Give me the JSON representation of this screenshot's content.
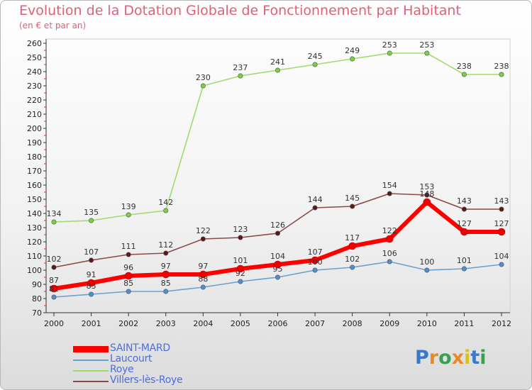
{
  "header": {
    "title": "Evolution de la Dotation Globale de Fonctionnement par Habitant",
    "subtitle": "(en € et par an)"
  },
  "brand": {
    "logo_letters": [
      "P",
      "r",
      "o",
      "x",
      "i",
      "t",
      "i"
    ],
    "logo_colors": [
      "#3c78c8",
      "#e88a2a",
      "#3aa050",
      "#e88a2a",
      "#d8c020",
      "#3c78c8",
      "#3aa050"
    ]
  },
  "chart_data": {
    "type": "line",
    "title": "Evolution de la Dotation Globale de Fonctionnement par Habitant",
    "subtitle": "(en € et par an)",
    "xlabel": "",
    "ylabel": "",
    "ylim": [
      70,
      260
    ],
    "y_ticks": [
      70,
      80,
      90,
      100,
      110,
      120,
      130,
      140,
      150,
      160,
      170,
      180,
      190,
      200,
      210,
      220,
      230,
      240,
      250,
      260
    ],
    "grid": false,
    "legend_position": "bottom-left",
    "x": [
      "2000",
      "2001",
      "2002",
      "2003",
      "2004",
      "2005",
      "2006",
      "2007",
      "2008",
      "2009",
      "2010",
      "2011",
      "2012"
    ],
    "series": [
      {
        "name": "Laucourt",
        "color": "#6a9fcf",
        "dot": "#4f8fcf",
        "values": [
          81,
          83,
          85,
          85,
          88,
          92,
          95,
          100,
          102,
          106,
          100,
          101,
          104
        ],
        "labels": [
          "81",
          "83",
          "85",
          "85",
          "88",
          "92",
          "95",
          "100",
          "102",
          "106",
          "100",
          "101",
          "104"
        ]
      },
      {
        "name": "Roye",
        "color": "#9fdc6e",
        "dot": "#79d040",
        "values": [
          134,
          135,
          139,
          142,
          230,
          237,
          241,
          245,
          249,
          253,
          253,
          238,
          238
        ],
        "labels": [
          "134",
          "135",
          "139",
          "142",
          "230",
          "237",
          "241",
          "245",
          "249",
          "253",
          "253",
          "238",
          "238"
        ]
      },
      {
        "name": "Villers-lès-Roye",
        "color": "#8a4a4a",
        "dot": "#5a1818",
        "values": [
          102,
          107,
          111,
          112,
          122,
          123,
          126,
          144,
          145,
          154,
          153,
          143,
          143
        ],
        "labels": [
          "102",
          "107",
          "111",
          "112",
          "122",
          "123",
          "126",
          "144",
          "145",
          "154",
          "153",
          "143",
          "143"
        ]
      },
      {
        "name": "SAINT-MARD",
        "color": "#ff0000",
        "dot": "#ee0000",
        "values": [
          87,
          91,
          96,
          97,
          97,
          101,
          104,
          107,
          117,
          122,
          148,
          127,
          127
        ],
        "labels": [
          "87",
          "91",
          "96",
          "97",
          "97",
          "101",
          "104",
          "107",
          "117",
          "122",
          "148",
          "127",
          "127"
        ]
      }
    ],
    "legend": [
      {
        "name": "SAINT-MARD",
        "color": "#ff0000"
      },
      {
        "name": "Laucourt",
        "color": "#6a9fcf"
      },
      {
        "name": "Roye",
        "color": "#9fdc6e"
      },
      {
        "name": "Villers-lès-Roye",
        "color": "#8a4a4a"
      }
    ]
  }
}
